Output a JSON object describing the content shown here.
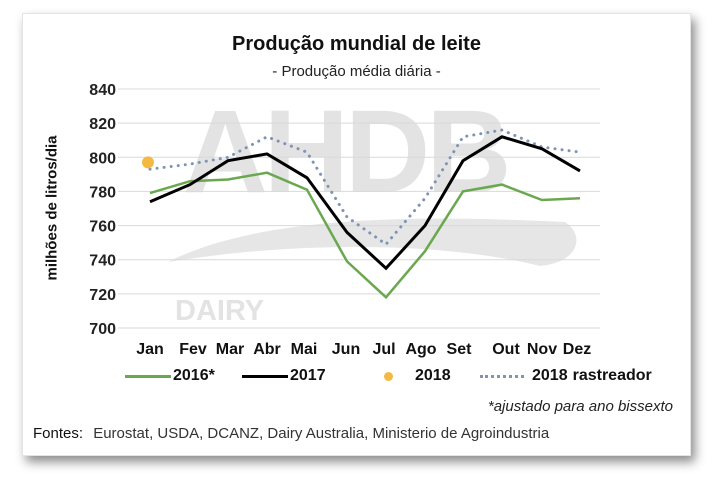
{
  "chart_data": {
    "type": "line",
    "title": "Produção mundial de leite",
    "subtitle": "- Produção média diária -",
    "xlabel": "",
    "ylabel": "milhões de litros/dia",
    "ylim": [
      700,
      840
    ],
    "yticks": [
      700,
      720,
      740,
      760,
      780,
      800,
      820,
      840
    ],
    "grid": true,
    "legend_position": "bottom",
    "categories": [
      "Jan",
      "Fev",
      "Mar",
      "Abr",
      "Mai",
      "Jun",
      "Jul",
      "Ago",
      "Set",
      "Out",
      "Nov",
      "Dez"
    ],
    "series": [
      {
        "name": "2016*",
        "style": "solid",
        "color": "#6aa84f",
        "values": [
          779,
          786,
          787,
          791,
          781,
          739,
          718,
          745,
          780,
          784,
          775,
          776
        ]
      },
      {
        "name": "2017",
        "style": "solid",
        "color": "#000000",
        "values": [
          774,
          784,
          798,
          802,
          788,
          756,
          735,
          760,
          798,
          812,
          805,
          792
        ]
      },
      {
        "name": "2018",
        "style": "marker",
        "color": "#f4b942",
        "values": [
          797,
          null,
          null,
          null,
          null,
          null,
          null,
          null,
          null,
          null,
          null,
          null
        ]
      },
      {
        "name": "2018 rastreador",
        "style": "dotted",
        "color": "#7f93b3",
        "values": [
          793,
          796,
          800,
          812,
          803,
          765,
          749,
          776,
          812,
          816,
          806,
          803
        ]
      }
    ],
    "footnote": "*ajustado para ano bissexto",
    "sources": "Eurostat, USDA, DCANZ,  Dairy Australia, Ministerio de Agroindustria"
  },
  "header": {
    "title": "Produção mundial de leite",
    "subtitle": "- Produção média diária -"
  },
  "axis": {
    "ylabel": "milhões de litros/dia"
  },
  "legend": {
    "s2016": "2016*",
    "s2017": "2017",
    "s2018": "2018",
    "s2018r_year": "2018",
    "s2018r_word": "rastreador"
  },
  "watermark": {
    "brand": "AHDB",
    "sub": "DAIRY"
  },
  "footer": {
    "note": "*ajustado para ano bissexto",
    "sources_label": "Fontes:",
    "sources": "Eurostat, USDA, DCANZ,  Dairy Australia, Ministerio de Agroindustria"
  }
}
